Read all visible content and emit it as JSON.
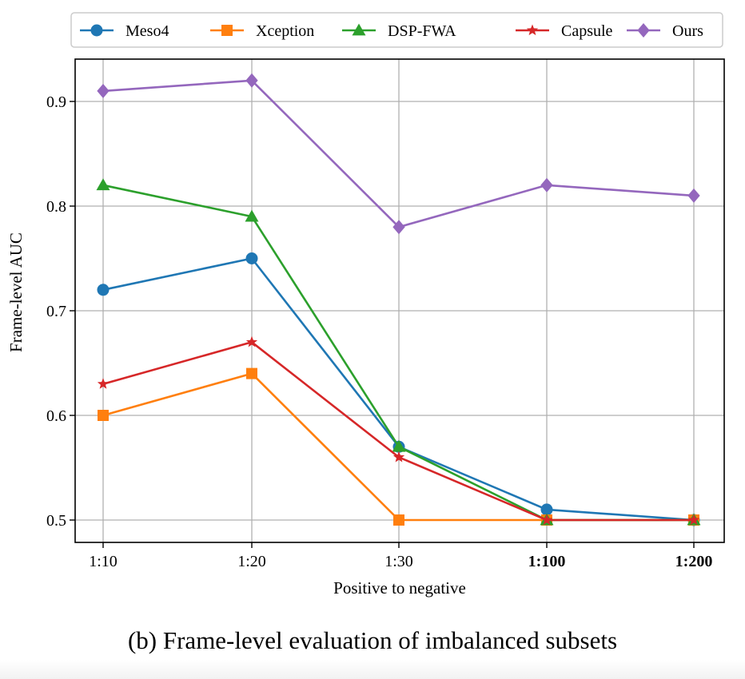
{
  "chart_data": {
    "type": "line",
    "title": "",
    "xlabel": "Positive to negative",
    "ylabel": "Frame-level AUC",
    "categories": [
      "1:10",
      "1:20",
      "1:30",
      "1:100",
      "1:200"
    ],
    "bold_categories": [
      "1:100",
      "1:200"
    ],
    "ylim": [
      0.475,
      0.94
    ],
    "yticks": [
      0.5,
      0.6,
      0.7,
      0.8,
      0.9
    ],
    "ytick_labels": [
      "0.5",
      "0.6",
      "0.7",
      "0.8",
      "0.9"
    ],
    "grid": true,
    "legend_position": "top",
    "series": [
      {
        "name": "Meso4",
        "color": "#1f77b4",
        "marker": "circle",
        "values": [
          0.72,
          0.75,
          0.57,
          0.51,
          0.5
        ]
      },
      {
        "name": "Xception",
        "color": "#ff7f0e",
        "marker": "square",
        "values": [
          0.6,
          0.64,
          0.5,
          0.5,
          0.5
        ]
      },
      {
        "name": "DSP-FWA",
        "color": "#2ca02c",
        "marker": "triangle",
        "values": [
          0.82,
          0.79,
          0.57,
          0.5,
          0.5
        ]
      },
      {
        "name": "Capsule",
        "color": "#d62728",
        "marker": "star",
        "values": [
          0.63,
          0.67,
          0.56,
          0.5,
          0.5
        ]
      },
      {
        "name": "Ours",
        "color": "#9467bd",
        "marker": "diamond",
        "values": [
          0.91,
          0.92,
          0.78,
          0.82,
          0.81
        ]
      }
    ]
  },
  "caption": "(b) Frame-level evaluation of imbalanced subsets"
}
